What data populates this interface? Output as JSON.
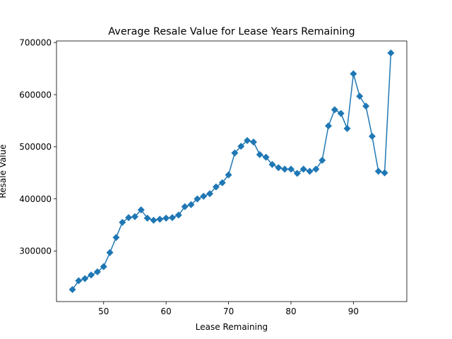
{
  "chart_data": {
    "type": "line",
    "title": "Average Resale Value for Lease Years Remaining",
    "xlabel": "Lease Remaining",
    "ylabel": "Resale Value",
    "xlim": [
      42.45,
      98.55
    ],
    "ylim": [
      203000,
      703000
    ],
    "xticks": [
      50,
      60,
      70,
      80,
      90
    ],
    "yticks": [
      300000,
      400000,
      500000,
      600000,
      700000
    ],
    "grid": false,
    "legend": "none",
    "line_color": "#1f77b4",
    "marker": "diamond",
    "series": [
      {
        "x": [
          45,
          46,
          47,
          48,
          49,
          50,
          51,
          52,
          53,
          54,
          55,
          56,
          57,
          58,
          59,
          60,
          61,
          62,
          63,
          64,
          65,
          66,
          67,
          68,
          69,
          70,
          71,
          72,
          73,
          74,
          75,
          76,
          77,
          78,
          79,
          80,
          81,
          82,
          83,
          84,
          85,
          86,
          87,
          88,
          89,
          90,
          91,
          92,
          93,
          94,
          95,
          96
        ],
        "y": [
          226000,
          243000,
          247000,
          254000,
          260000,
          270000,
          297000,
          326000,
          355000,
          364000,
          366000,
          379000,
          363000,
          359000,
          361000,
          363000,
          364000,
          369000,
          385000,
          389000,
          400000,
          405000,
          410000,
          423000,
          431000,
          446000,
          488000,
          501000,
          512000,
          509000,
          485000,
          480000,
          466000,
          460000,
          457000,
          457000,
          449000,
          457000,
          453000,
          457000,
          474000,
          540000,
          571000,
          564000,
          535000,
          640000,
          597000,
          578000,
          520000,
          453000,
          450000,
          680000
        ]
      }
    ]
  }
}
